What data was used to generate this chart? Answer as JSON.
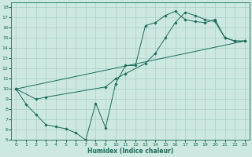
{
  "title": "",
  "xlabel": "Humidex (Indice chaleur)",
  "bg_color": "#cce8e0",
  "line_color": "#1a6b5a",
  "grid_color": "#aacfc8",
  "xlim": [
    -0.5,
    23.5
  ],
  "ylim": [
    5,
    18.5
  ],
  "xticks": [
    0,
    1,
    2,
    3,
    4,
    5,
    6,
    7,
    8,
    9,
    10,
    11,
    12,
    13,
    14,
    15,
    16,
    17,
    18,
    19,
    20,
    21,
    22,
    23
  ],
  "yticks": [
    5,
    6,
    7,
    8,
    9,
    10,
    11,
    12,
    13,
    14,
    15,
    16,
    17,
    18
  ],
  "line1_x": [
    0,
    1,
    2,
    3,
    4,
    5,
    6,
    7,
    8,
    9,
    10,
    11,
    12,
    13,
    14,
    15,
    16,
    17,
    18,
    19,
    20,
    21,
    22,
    23
  ],
  "line1_y": [
    10,
    8.5,
    7.5,
    6.5,
    6.3,
    6.1,
    5.7,
    5.0,
    8.6,
    6.2,
    10.5,
    12.3,
    12.3,
    16.2,
    16.5,
    17.2,
    17.6,
    16.8,
    16.6,
    16.5,
    16.8,
    15.0,
    14.7,
    14.7
  ],
  "line2_x": [
    0,
    2,
    3,
    9,
    10,
    11,
    13,
    14,
    15,
    16,
    17,
    18,
    19,
    20,
    21,
    22,
    23
  ],
  "line2_y": [
    10,
    9.0,
    9.2,
    10.2,
    11.0,
    11.5,
    12.5,
    13.5,
    15.0,
    16.5,
    17.5,
    17.2,
    16.8,
    16.6,
    15.0,
    14.7,
    14.7
  ],
  "line3_x": [
    0,
    23
  ],
  "line3_y": [
    10,
    14.7
  ],
  "xlabel_fontsize": 5.5,
  "tick_fontsize": 4.5
}
